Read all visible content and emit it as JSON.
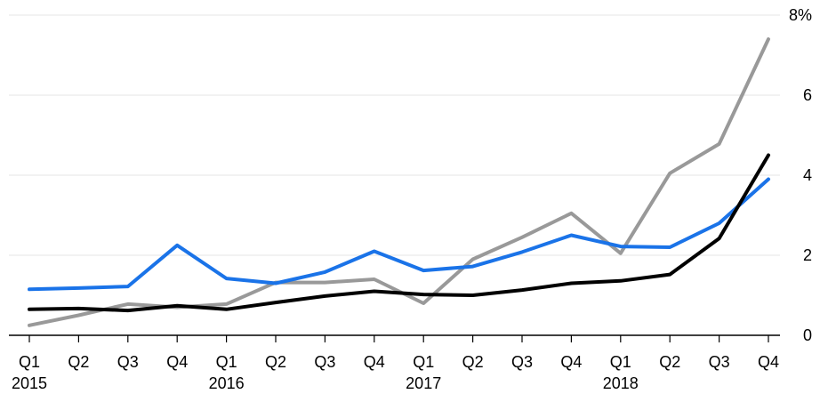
{
  "chart_data": {
    "type": "line",
    "title": "",
    "xlabel": "",
    "ylabel": "",
    "ylim": [
      0,
      8
    ],
    "y_ticks": [
      {
        "value": 0,
        "label": "0"
      },
      {
        "value": 2,
        "label": "2"
      },
      {
        "value": 4,
        "label": "4"
      },
      {
        "value": 6,
        "label": "6"
      },
      {
        "value": 8,
        "label": "8%"
      }
    ],
    "categories": [
      "Q1",
      "Q2",
      "Q3",
      "Q4",
      "Q1",
      "Q2",
      "Q3",
      "Q4",
      "Q1",
      "Q2",
      "Q3",
      "Q4",
      "Q1",
      "Q2",
      "Q3",
      "Q4"
    ],
    "year_labels": [
      {
        "index": 0,
        "label": "2015"
      },
      {
        "index": 4,
        "label": "2016"
      },
      {
        "index": 8,
        "label": "2017"
      },
      {
        "index": 12,
        "label": "2018"
      }
    ],
    "grid": true,
    "y_axis_side": "right",
    "legend": "none",
    "series": [
      {
        "color": "#999999",
        "values": [
          0.25,
          0.5,
          0.78,
          0.7,
          0.78,
          1.32,
          1.32,
          1.4,
          0.8,
          1.9,
          2.45,
          3.05,
          2.05,
          4.05,
          4.78,
          7.4
        ]
      },
      {
        "color": "#1a73e8",
        "values": [
          1.15,
          1.18,
          1.22,
          2.25,
          1.42,
          1.3,
          1.58,
          2.1,
          1.62,
          1.72,
          2.08,
          2.5,
          2.22,
          2.2,
          2.8,
          3.9
        ]
      },
      {
        "color": "#000000",
        "values": [
          0.65,
          0.67,
          0.62,
          0.74,
          0.65,
          0.82,
          0.98,
          1.1,
          1.02,
          1.0,
          1.13,
          1.3,
          1.36,
          1.52,
          2.42,
          4.5
        ]
      }
    ]
  }
}
